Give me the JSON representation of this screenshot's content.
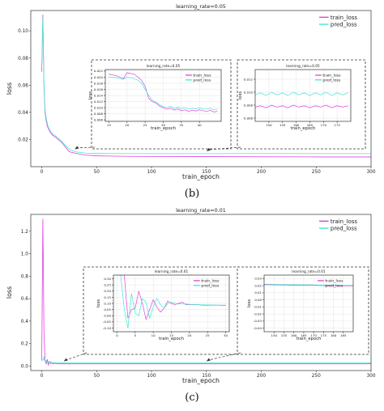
{
  "colors": {
    "train": "#e040e0",
    "pred": "#40e8d0",
    "axis": "#333333",
    "grid": "#dddddd"
  },
  "caption_b": "(b)",
  "caption_c": "(c)",
  "chart_data": [
    {
      "type": "line",
      "title": "learning_rate=0.05",
      "xlabel": "train_epoch",
      "ylabel": "loss",
      "xlim": [
        -10,
        300
      ],
      "ylim": [
        0.0,
        0.115
      ],
      "xticks": [
        0,
        50,
        100,
        150,
        200,
        250,
        300
      ],
      "yticks": [
        0.02,
        0.04,
        0.06,
        0.08,
        0.1
      ],
      "legend": "top-right",
      "series": [
        {
          "name": "train_loss",
          "x": [
            0,
            1,
            2,
            3,
            4,
            5,
            6,
            8,
            10,
            12,
            15,
            18,
            20,
            25,
            30,
            40,
            50,
            60,
            80,
            100,
            150,
            200,
            250,
            300
          ],
          "y": [
            0.07,
            0.112,
            0.06,
            0.04,
            0.034,
            0.03,
            0.028,
            0.025,
            0.023,
            0.022,
            0.02,
            0.018,
            0.016,
            0.011,
            0.01,
            0.0085,
            0.008,
            0.0078,
            0.0076,
            0.0075,
            0.0074,
            0.0073,
            0.0072,
            0.0072
          ]
        },
        {
          "name": "pred_loss",
          "x": [
            0,
            1,
            2,
            3,
            4,
            5,
            6,
            8,
            10,
            12,
            15,
            18,
            20,
            25,
            30,
            40,
            50,
            60,
            80,
            100,
            150,
            200,
            250,
            300
          ],
          "y": [
            0.073,
            0.11,
            0.062,
            0.042,
            0.036,
            0.032,
            0.029,
            0.026,
            0.024,
            0.023,
            0.021,
            0.019,
            0.017,
            0.013,
            0.011,
            0.01,
            0.0098,
            0.0097,
            0.0096,
            0.0096,
            0.0096,
            0.0097,
            0.0096,
            0.0096
          ]
        }
      ],
      "insets": [
        {
          "title": "learning_rate=0.05",
          "xlabel": "train_epoch",
          "ylabel": "loss",
          "xlim": [
            14,
            46
          ],
          "ylim": [
            0.0055,
            0.0225
          ],
          "xticks": [
            15,
            20,
            25,
            30,
            35,
            40
          ],
          "yticks": [
            0.006,
            0.008,
            0.01,
            0.012,
            0.014,
            0.016,
            0.018,
            0.02,
            0.022
          ],
          "legend": "top-right",
          "series": [
            {
              "name": "train_loss",
              "x": [
                15,
                17,
                19,
                20,
                21,
                22,
                23,
                24,
                25,
                26,
                27,
                28,
                29,
                30,
                31,
                32,
                33,
                34,
                35,
                36,
                37,
                38,
                39,
                40,
                41,
                42,
                43,
                44,
                45
              ],
              "y": [
                0.021,
                0.0205,
                0.0195,
                0.0215,
                0.0212,
                0.021,
                0.02,
                0.019,
                0.017,
                0.013,
                0.012,
                0.0115,
                0.0105,
                0.01,
                0.0095,
                0.0098,
                0.0092,
                0.0096,
                0.009,
                0.0093,
                0.0088,
                0.0092,
                0.0089,
                0.0093,
                0.009,
                0.0088,
                0.0091,
                0.0086,
                0.0088
              ]
            },
            {
              "name": "pred_loss",
              "x": [
                15,
                17,
                19,
                20,
                21,
                22,
                23,
                24,
                25,
                26,
                27,
                28,
                29,
                30,
                31,
                32,
                33,
                34,
                35,
                36,
                37,
                38,
                39,
                40,
                41,
                42,
                43,
                44,
                45
              ],
              "y": [
                0.02,
                0.0198,
                0.0193,
                0.02,
                0.0198,
                0.0195,
                0.019,
                0.018,
                0.016,
                0.014,
                0.0125,
                0.0118,
                0.011,
                0.0103,
                0.01,
                0.0104,
                0.0098,
                0.0102,
                0.0097,
                0.01,
                0.0095,
                0.0098,
                0.0096,
                0.0099,
                0.0096,
                0.0095,
                0.0098,
                0.0093,
                0.0095
              ]
            }
          ]
        },
        {
          "title": "learning_rate=0.05",
          "xlabel": "train_epoch",
          "ylabel": "loss",
          "xlim": [
            145,
            180
          ],
          "ylim": [
            0.0055,
            0.0135
          ],
          "xticks": [
            150,
            155,
            160,
            165,
            170,
            175
          ],
          "yticks": [
            0.006,
            0.008,
            0.01,
            0.012
          ],
          "legend": "top-right",
          "series": [
            {
              "name": "train_loss",
              "x": [
                145,
                147,
                149,
                151,
                153,
                155,
                157,
                159,
                161,
                163,
                165,
                167,
                169,
                171,
                173,
                175,
                177,
                179
              ],
              "y": [
                0.0077,
                0.0079,
                0.0076,
                0.008,
                0.0077,
                0.0079,
                0.0076,
                0.008,
                0.0077,
                0.0079,
                0.0076,
                0.0079,
                0.0077,
                0.008,
                0.0076,
                0.0079,
                0.0077,
                0.0079
              ]
            },
            {
              "name": "pred_loss",
              "x": [
                145,
                147,
                149,
                151,
                153,
                155,
                157,
                159,
                161,
                163,
                165,
                167,
                169,
                171,
                173,
                175,
                177,
                179
              ],
              "y": [
                0.0096,
                0.0099,
                0.0095,
                0.01,
                0.0096,
                0.0099,
                0.0095,
                0.01,
                0.0096,
                0.0099,
                0.0095,
                0.0099,
                0.0096,
                0.01,
                0.0095,
                0.0099,
                0.0096,
                0.0099
              ]
            }
          ]
        }
      ]
    },
    {
      "type": "line",
      "title": "learning_rate=0.01",
      "xlabel": "train_epoch",
      "ylabel": "loss",
      "xlim": [
        -10,
        300
      ],
      "ylim": [
        -0.04,
        1.35
      ],
      "xticks": [
        0,
        50,
        100,
        150,
        200,
        250,
        300
      ],
      "yticks": [
        0.0,
        0.2,
        0.4,
        0.6,
        0.8,
        1.0,
        1.2
      ],
      "legend": "top-right",
      "series": [
        {
          "name": "train_loss",
          "x": [
            0,
            1,
            2,
            3,
            4,
            5,
            6,
            7,
            8,
            9,
            10,
            12,
            15,
            20,
            30,
            50,
            100,
            150,
            200,
            250,
            300
          ],
          "y": [
            0.05,
            1.31,
            0.3,
            0.05,
            0.02,
            0.06,
            0.01,
            0.04,
            0.02,
            0.03,
            0.02,
            0.025,
            0.02,
            0.02,
            0.02,
            0.02,
            0.02,
            0.02,
            0.02,
            0.02,
            0.02
          ]
        },
        {
          "name": "pred_loss",
          "x": [
            0,
            1,
            2,
            3,
            4,
            5,
            6,
            7,
            8,
            9,
            10,
            12,
            15,
            20,
            30,
            50,
            100,
            150,
            200,
            250,
            300
          ],
          "y": [
            0.06,
            0.05,
            0.08,
            0.04,
            0.05,
            0.03,
            0.04,
            0.03,
            0.04,
            0.03,
            0.03,
            0.03,
            0.03,
            0.028,
            0.027,
            0.027,
            0.027,
            0.027,
            0.027,
            0.027,
            0.027
          ]
        }
      ],
      "insets": [
        {
          "title": "learning_rate=0.01",
          "xlabel": "train_epoch",
          "ylabel": "loss",
          "xlim": [
            -1,
            31
          ],
          "ylim": [
            -0.13,
            0.33
          ],
          "xticks": [
            0,
            5,
            10,
            15,
            20,
            25,
            30
          ],
          "yticks": [
            -0.1,
            -0.05,
            0.0,
            0.05,
            0.1,
            0.15,
            0.2,
            0.25,
            0.3
          ],
          "legend": "top-right",
          "series": [
            {
              "name": "train_loss",
              "x": [
                0,
                1,
                2,
                3,
                4,
                5,
                6,
                7,
                8,
                9,
                10,
                11,
                12,
                13,
                14,
                15,
                16,
                17,
                18,
                19,
                20,
                22,
                24,
                26,
                28,
                30
              ],
              "y": [
                0.33,
                0.33,
                0.33,
                -0.02,
                0.05,
                0.06,
                0.2,
                0.1,
                -0.03,
                0.05,
                0.13,
                0.07,
                0.03,
                0.06,
                0.12,
                0.1,
                0.09,
                0.1,
                0.11,
                0.09,
                0.09,
                0.09,
                0.085,
                0.085,
                0.085,
                0.083
              ]
            },
            {
              "name": "pred_loss",
              "x": [
                0,
                1,
                2,
                3,
                4,
                5,
                6,
                7,
                8,
                9,
                10,
                11,
                12,
                13,
                14,
                15,
                16,
                17,
                18,
                19,
                20,
                22,
                24,
                26,
                28,
                30
              ],
              "y": [
                0.33,
                0.33,
                0.05,
                -0.1,
                0.18,
                0.02,
                0.0,
                0.14,
                0.11,
                -0.02,
                0.07,
                0.14,
                0.09,
                0.06,
                0.1,
                0.11,
                0.1,
                0.095,
                0.1,
                0.095,
                0.092,
                0.09,
                0.088,
                0.087,
                0.086,
                0.085
              ]
            }
          ]
        },
        {
          "title": "learning_rate=0.01",
          "xlabel": "train_epoch",
          "ylabel": "loss",
          "xlim": [
            145,
            190
          ],
          "ylim": [
            -0.045,
            0.035
          ],
          "xticks": [
            150,
            155,
            160,
            165,
            170,
            175,
            180,
            185
          ],
          "yticks": [
            -0.04,
            -0.03,
            -0.02,
            -0.01,
            0.0,
            0.01,
            0.02,
            0.03
          ],
          "legend": "top-right",
          "series": [
            {
              "name": "train_loss",
              "x": [
                145,
                150,
                155,
                160,
                165,
                170,
                175,
                180,
                185,
                190
              ],
              "y": [
                0.0215,
                0.0213,
                0.0211,
                0.0209,
                0.0207,
                0.0205,
                0.0203,
                0.0201,
                0.0199,
                0.0197
              ]
            },
            {
              "name": "pred_loss",
              "x": [
                145,
                150,
                155,
                160,
                165,
                170,
                175,
                180,
                185,
                190
              ],
              "y": [
                0.0222,
                0.022,
                0.0218,
                0.0216,
                0.0214,
                0.0212,
                0.021,
                0.0208,
                0.0206,
                0.0204
              ]
            }
          ]
        }
      ]
    }
  ]
}
